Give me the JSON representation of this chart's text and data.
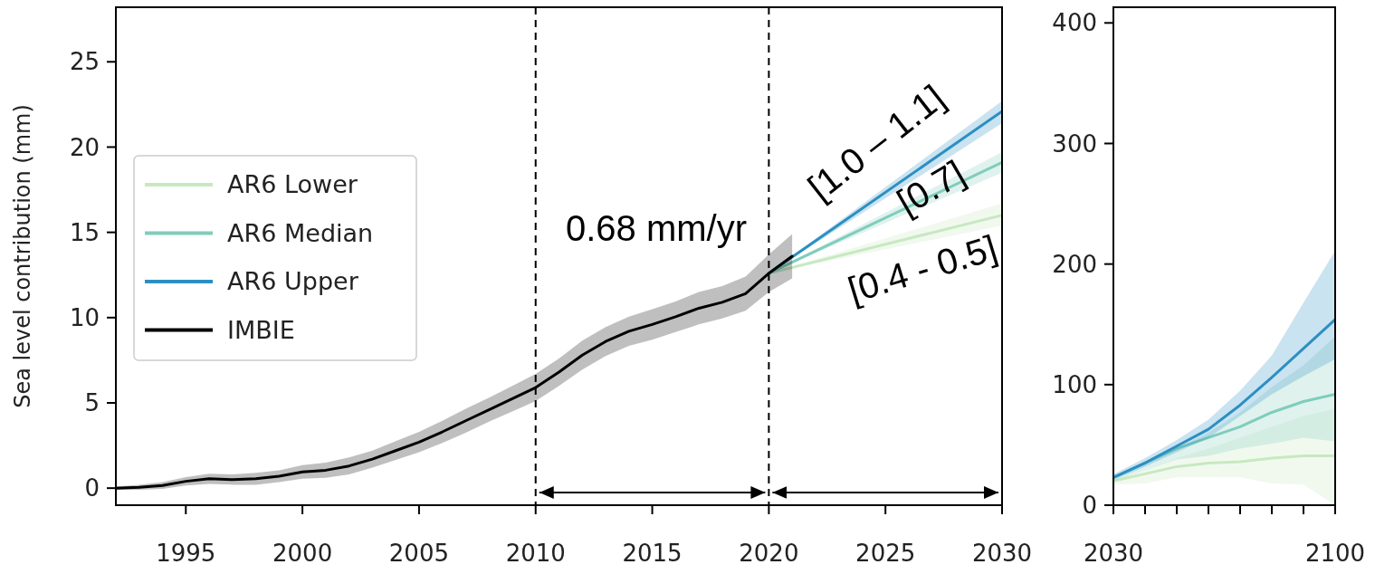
{
  "chart_data": [
    {
      "type": "line",
      "ylabel": "Sea level contribution (mm)",
      "xlim": [
        1992,
        2030
      ],
      "xticks": [
        1995,
        2000,
        2005,
        2010,
        2015,
        2020,
        2025,
        2030
      ],
      "ylim": [
        -1,
        28.2
      ],
      "yticks": [
        0,
        5,
        10,
        15,
        20,
        25
      ],
      "legend": "left",
      "grid": false,
      "series": [
        {
          "name": "AR6 Lower",
          "color": "#c7e9c0",
          "x": [
            2020,
            2030
          ],
          "values": [
            12.6,
            16.0
          ],
          "lower": [
            12.6,
            15.4
          ],
          "upper": [
            12.6,
            16.7
          ]
        },
        {
          "name": "AR6 Median",
          "color": "#7fcdbb",
          "x": [
            2020,
            2030
          ],
          "values": [
            12.6,
            19.1
          ],
          "lower": [
            12.6,
            18.5
          ],
          "upper": [
            12.6,
            19.7
          ]
        },
        {
          "name": "AR6 Upper",
          "color": "#2c8fc3",
          "x": [
            2020,
            2030
          ],
          "values": [
            12.6,
            22.1
          ],
          "lower": [
            12.6,
            21.4
          ],
          "upper": [
            12.6,
            22.7
          ]
        },
        {
          "name": "IMBIE",
          "color": "#000000",
          "x": [
            1992,
            1993,
            1994,
            1995,
            1996,
            1997,
            1998,
            1999,
            2000,
            2001,
            2002,
            2003,
            2004,
            2005,
            2006,
            2007,
            2008,
            2009,
            2010,
            2011,
            2012,
            2013,
            2014,
            2015,
            2016,
            2017,
            2018,
            2019,
            2020,
            2021
          ],
          "values": [
            0,
            0.05,
            0.15,
            0.4,
            0.55,
            0.5,
            0.55,
            0.7,
            0.95,
            1.05,
            1.3,
            1.7,
            2.2,
            2.7,
            3.3,
            3.95,
            4.6,
            5.25,
            5.9,
            6.8,
            7.8,
            8.6,
            9.2,
            9.6,
            10.05,
            10.55,
            10.9,
            11.4,
            12.6,
            13.6
          ],
          "lower": [
            -0.1,
            -0.1,
            -0.05,
            0.15,
            0.25,
            0.2,
            0.2,
            0.35,
            0.55,
            0.6,
            0.8,
            1.2,
            1.65,
            2.1,
            2.65,
            3.25,
            3.9,
            4.5,
            5.1,
            6.0,
            6.95,
            7.75,
            8.35,
            8.7,
            9.15,
            9.6,
            9.95,
            10.4,
            11.5,
            12.3
          ],
          "upper": [
            0.1,
            0.2,
            0.35,
            0.65,
            0.85,
            0.8,
            0.9,
            1.05,
            1.35,
            1.5,
            1.8,
            2.2,
            2.75,
            3.3,
            3.95,
            4.65,
            5.3,
            6.0,
            6.7,
            7.6,
            8.65,
            9.45,
            10.05,
            10.5,
            10.95,
            11.5,
            11.85,
            12.4,
            13.7,
            14.9
          ]
        }
      ],
      "ref_lines": [
        {
          "axis": "x",
          "value": 2010,
          "line_style": "dashed",
          "color": "#000000"
        },
        {
          "axis": "x",
          "value": 2020,
          "line_style": "dashed",
          "color": "#000000"
        }
      ],
      "annotations": [
        "0.68 mm/yr",
        "[1.0 – 1.1]",
        "[0.7]",
        "[0.4 - 0.5]"
      ]
    },
    {
      "type": "line",
      "xlim": [
        2030,
        2100
      ],
      "xticks": [
        2030,
        {
          "value": 2040,
          "label": null
        },
        {
          "value": 2050,
          "label": null
        },
        {
          "value": 2060,
          "label": null
        },
        {
          "value": 2070,
          "label": null
        },
        {
          "value": 2080,
          "label": null
        },
        {
          "value": 2090,
          "label": null
        },
        2100
      ],
      "ylim": [
        0,
        413
      ],
      "yticks": [
        0,
        100,
        200,
        300,
        400
      ],
      "grid": false,
      "series": [
        {
          "color": "#c7e9c0",
          "x": [
            2030,
            2040,
            2050,
            2060,
            2070,
            2080,
            2090,
            2100
          ],
          "values": [
            20,
            26,
            32,
            35,
            36,
            39,
            41,
            41
          ],
          "lower": [
            17,
            18,
            23,
            23,
            23,
            18,
            17,
            0
          ],
          "upper": [
            21,
            29,
            39,
            47,
            56,
            65,
            74,
            80
          ]
        },
        {
          "color": "#7fcdbb",
          "x": [
            2030,
            2040,
            2050,
            2060,
            2070,
            2080,
            2090,
            2100
          ],
          "values": [
            23,
            35,
            47,
            56,
            65,
            77,
            86,
            92
          ],
          "lower": [
            20,
            29,
            38,
            41,
            47,
            51,
            56,
            53
          ],
          "upper": [
            24,
            35,
            47,
            60,
            77,
            98,
            116,
            140
          ]
        },
        {
          "color": "#2c8fc3",
          "x": [
            2030,
            2040,
            2050,
            2060,
            2070,
            2080,
            2090,
            2100
          ],
          "values": [
            23,
            35,
            49,
            63,
            83,
            106,
            130,
            154
          ],
          "lower": [
            21,
            32,
            44,
            56,
            74,
            92,
            107,
            121
          ],
          "upper": [
            25.7,
            39,
            54,
            71,
            95,
            124,
            168,
            211
          ]
        }
      ]
    }
  ]
}
